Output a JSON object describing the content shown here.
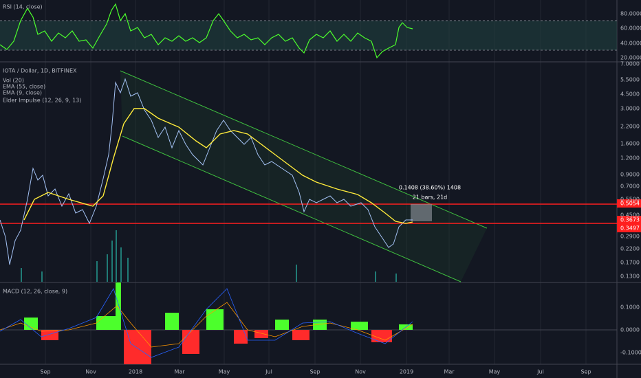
{
  "rsi_panel": {
    "title": "RSI (14, close)",
    "ticks": [
      "80.0000",
      "60.0000",
      "40.0000",
      "20.0000"
    ]
  },
  "main_panel": {
    "legend": [
      "IOTA / Dollar, 1D, BITFINEX",
      "Vol (20)",
      "EMA (55, close)",
      "EMA (9, close)",
      "Elder Impulse (12, 26, 9, 13)"
    ],
    "ticks": [
      "7.0000",
      "5.5000",
      "4.5000",
      "3.0000",
      "2.2000",
      "1.6000",
      "1.2000",
      "0.9000",
      "0.7000",
      "0.5500",
      "0.4500",
      "0.2900",
      "0.2200",
      "0.1700",
      "0.1300"
    ],
    "tags": [
      "0.5054",
      "0.3673",
      "0.3497"
    ],
    "measure": {
      "line1": "0.1408 (38.60%) 1408",
      "line2": "21 bars, 21d"
    }
  },
  "macd_panel": {
    "title": "MACD (12, 26, close, 9)",
    "ticks": [
      "0.1000",
      "0.0000",
      "-0.1000"
    ]
  },
  "time_axis": [
    "Sep",
    "Nov",
    "2018",
    "Mar",
    "May",
    "Jul",
    "Sep",
    "Nov",
    "2019",
    "Mar",
    "May",
    "Jul",
    "Sep"
  ]
}
